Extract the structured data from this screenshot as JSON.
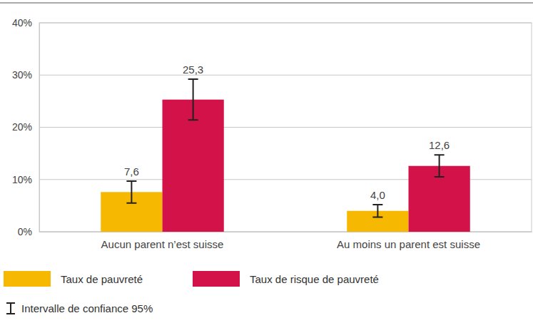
{
  "chart_data": {
    "type": "bar",
    "categories": [
      "Aucun parent n’est suisse",
      "Au moins un parent est suisse"
    ],
    "series": [
      {
        "name": "Taux de pauvreté",
        "color": "#f6b800",
        "values": [
          7.6,
          4.0
        ],
        "value_labels": [
          "7,6",
          "4,0"
        ],
        "errors": [
          2.1,
          1.2
        ]
      },
      {
        "name": "Taux de risque de pauvreté",
        "color": "#d4124a",
        "values": [
          25.3,
          12.6
        ],
        "value_labels": [
          "25,3",
          "12,6"
        ],
        "errors": [
          3.9,
          2.1
        ]
      }
    ],
    "error_label": "Intervalle de confiance 95%",
    "ylim": [
      0,
      40
    ],
    "yticks": [
      {
        "value": 0,
        "label": "0%"
      },
      {
        "value": 10,
        "label": "10%"
      },
      {
        "value": 20,
        "label": "20%"
      },
      {
        "value": 30,
        "label": "30%"
      },
      {
        "value": 40,
        "label": "40%"
      }
    ],
    "grid": true,
    "data_labels": true,
    "legend": "bottom-left"
  }
}
